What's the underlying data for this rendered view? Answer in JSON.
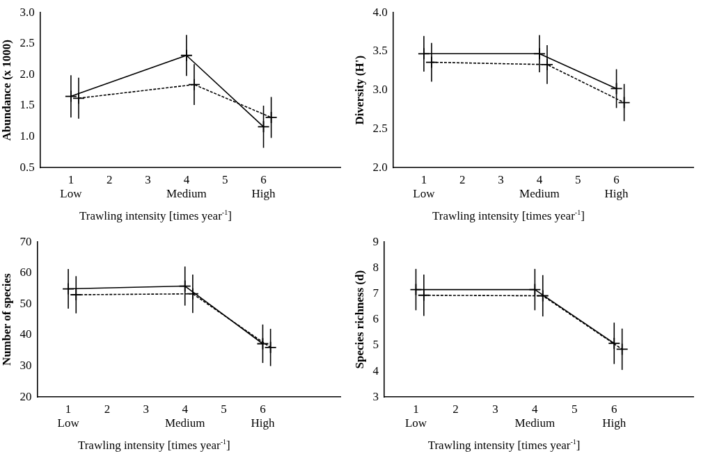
{
  "chart_data": [
    {
      "type": "line",
      "ylabel": "Abundance (x 1000)",
      "xlabel": "Trawling intensity [times year$^{-1}$]",
      "xlim": [
        0.2,
        8
      ],
      "xticks": [
        {
          "value": 1,
          "label": "1\nLow"
        },
        2,
        3,
        {
          "value": 4,
          "label": "4\nMedium"
        },
        5,
        {
          "value": 6,
          "label": "6\nHigh"
        }
      ],
      "ylim": [
        0.5,
        3
      ],
      "yticks": [
        0.5,
        {
          "value": 1,
          "label": "1.0"
        },
        1.5,
        {
          "value": 2,
          "label": "2.0"
        },
        2.5,
        {
          "value": 3,
          "label": "3.0"
        }
      ],
      "grid": false,
      "legend": false,
      "marker": "cross",
      "series": [
        {
          "color": "#000000",
          "line_style": "solid",
          "x": [
            1,
            4,
            6
          ],
          "values": [
            1.65,
            2.31,
            1.16
          ],
          "errors": [
            0.34,
            0.33,
            0.34
          ]
        },
        {
          "color": "#000000",
          "line_style": "dashed",
          "x": [
            1.2,
            4.2,
            6.2
          ],
          "values": [
            1.62,
            1.84,
            1.31
          ],
          "errors": [
            0.33,
            0.33,
            0.33
          ]
        }
      ]
    },
    {
      "type": "line",
      "ylabel": "Diversity (H')",
      "xlabel": "Trawling intensity [times year$^{-1}$]",
      "xlim": [
        0.2,
        8
      ],
      "xticks": [
        {
          "value": 1,
          "label": "1\nLow"
        },
        2,
        3,
        {
          "value": 4,
          "label": "4\nMedium"
        },
        5,
        {
          "value": 6,
          "label": "6\nHigh"
        }
      ],
      "ylim": [
        2,
        4
      ],
      "yticks": [
        {
          "value": 2,
          "label": "2.0"
        },
        2.5,
        {
          "value": 3,
          "label": "3.0"
        },
        3.5,
        {
          "value": 4,
          "label": "4.0"
        }
      ],
      "grid": false,
      "legend": false,
      "marker": "cross",
      "series": [
        {
          "color": "#000000",
          "line_style": "solid",
          "x": [
            1,
            4,
            6
          ],
          "values": [
            3.47,
            3.47,
            3.02
          ],
          "errors": [
            0.23,
            0.24,
            0.25
          ]
        },
        {
          "color": "#000000",
          "line_style": "dashed",
          "x": [
            1.2,
            4.2,
            6.2
          ],
          "values": [
            3.36,
            3.33,
            2.84
          ],
          "errors": [
            0.25,
            0.25,
            0.24
          ]
        }
      ]
    },
    {
      "type": "line",
      "ylabel": "Number of species",
      "xlabel": "Trawling intensity [times year$^{-1}$]",
      "xlim": [
        0.2,
        8
      ],
      "xticks": [
        {
          "value": 1,
          "label": "1\nLow"
        },
        2,
        3,
        {
          "value": 4,
          "label": "4\nMedium"
        },
        5,
        {
          "value": 6,
          "label": "6\nHigh"
        }
      ],
      "ylim": [
        20,
        70
      ],
      "yticks": [
        20,
        30,
        40,
        50,
        60,
        70
      ],
      "grid": false,
      "legend": false,
      "marker": "cross",
      "series": [
        {
          "color": "#000000",
          "line_style": "solid",
          "x": [
            1,
            4,
            6
          ],
          "values": [
            54.9,
            55.8,
            37.2
          ],
          "errors": [
            6.4,
            6.3,
            6.2
          ]
        },
        {
          "color": "#000000",
          "line_style": "dashed",
          "x": [
            1.2,
            4.2,
            6.2
          ],
          "values": [
            53,
            53.3,
            36
          ],
          "errors": [
            6,
            6.2,
            6
          ]
        }
      ]
    },
    {
      "type": "line",
      "ylabel": "Species richness (d)",
      "xlabel": "Trawling intensity [times year$^{-1}$]",
      "xlim": [
        0.2,
        8
      ],
      "xticks": [
        {
          "value": 1,
          "label": "1\nLow"
        },
        2,
        3,
        {
          "value": 4,
          "label": "4\nMedium"
        },
        5,
        {
          "value": 6,
          "label": "6\nHigh"
        }
      ],
      "ylim": [
        3,
        9
      ],
      "yticks": [
        3,
        4,
        5,
        6,
        7,
        8,
        9
      ],
      "grid": false,
      "legend": false,
      "marker": "cross",
      "series": [
        {
          "color": "#000000",
          "line_style": "solid",
          "x": [
            1,
            4,
            6
          ],
          "values": [
            7.16,
            7.16,
            5.08
          ],
          "errors": [
            0.8,
            0.8,
            0.8
          ]
        },
        {
          "color": "#000000",
          "line_style": "dashed",
          "x": [
            1.2,
            4.2,
            6.2
          ],
          "values": [
            6.94,
            6.92,
            4.85
          ],
          "errors": [
            0.8,
            0.8,
            0.8
          ]
        }
      ]
    }
  ]
}
